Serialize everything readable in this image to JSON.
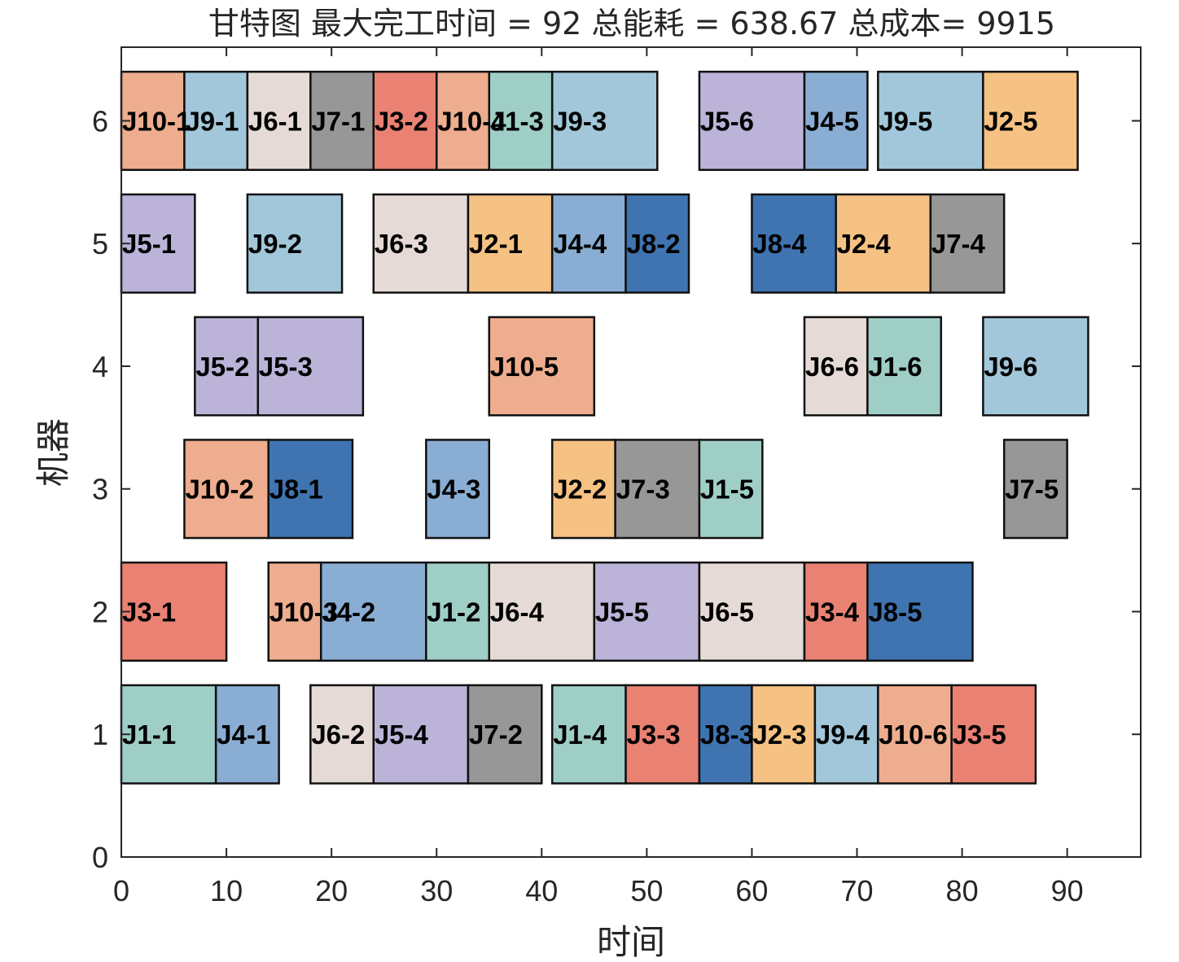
{
  "chart_data": {
    "type": "gantt",
    "title": "甘特图 最大完工时间 = 92 总能耗 = 638.67 总成本= 9915",
    "xlabel": "时间",
    "ylabel": "机器",
    "xlim": [
      0,
      97
    ],
    "ylim": [
      0,
      6.6
    ],
    "xticks": [
      "0",
      "10",
      "20",
      "30",
      "40",
      "50",
      "60",
      "70",
      "80",
      "90"
    ],
    "xtick_values": [
      0,
      10,
      20,
      30,
      40,
      50,
      60,
      70,
      80,
      90
    ],
    "yticks": [
      "0",
      "1",
      "2",
      "3",
      "4",
      "5",
      "6"
    ],
    "ytick_values": [
      0,
      1,
      2,
      3,
      4,
      5,
      6
    ],
    "grid": false,
    "job_colors": {
      "J1": "#9fcec7",
      "J2": "#f5c283",
      "J3": "#ea8273",
      "J4": "#8aadd3",
      "J5": "#bcb3d9",
      "J6": "#e5dad5",
      "J7": "#979797",
      "J8": "#3f74b1",
      "J9": "#a2c7da",
      "J10": "#edad8e"
    },
    "tasks": [
      {
        "machine": 1,
        "job": "J1",
        "label": "J1-1",
        "start": 0,
        "end": 9
      },
      {
        "machine": 1,
        "job": "J4",
        "label": "J4-1",
        "start": 9,
        "end": 15
      },
      {
        "machine": 1,
        "job": "J6",
        "label": "J6-2",
        "start": 18,
        "end": 24
      },
      {
        "machine": 1,
        "job": "J5",
        "label": "J5-4",
        "start": 24,
        "end": 33
      },
      {
        "machine": 1,
        "job": "J7",
        "label": "J7-2",
        "start": 33,
        "end": 40
      },
      {
        "machine": 1,
        "job": "J1",
        "label": "J1-4",
        "start": 41,
        "end": 48
      },
      {
        "machine": 1,
        "job": "J3",
        "label": "J3-3",
        "start": 48,
        "end": 55
      },
      {
        "machine": 1,
        "job": "J8",
        "label": "J8-3",
        "start": 55,
        "end": 60
      },
      {
        "machine": 1,
        "job": "J2",
        "label": "J2-3",
        "start": 60,
        "end": 66
      },
      {
        "machine": 1,
        "job": "J9",
        "label": "J9-4",
        "start": 66,
        "end": 72
      },
      {
        "machine": 1,
        "job": "J10",
        "label": "J10-6",
        "start": 72,
        "end": 79
      },
      {
        "machine": 1,
        "job": "J3",
        "label": "J3-5",
        "start": 79,
        "end": 87
      },
      {
        "machine": 2,
        "job": "J3",
        "label": "J3-1",
        "start": 0,
        "end": 10
      },
      {
        "machine": 2,
        "job": "J10",
        "label": "J10-3",
        "start": 14,
        "end": 19
      },
      {
        "machine": 2,
        "job": "J4",
        "label": "J4-2",
        "start": 19,
        "end": 29
      },
      {
        "machine": 2,
        "job": "J1",
        "label": "J1-2",
        "start": 29,
        "end": 35
      },
      {
        "machine": 2,
        "job": "J6",
        "label": "J6-4",
        "start": 35,
        "end": 45
      },
      {
        "machine": 2,
        "job": "J5",
        "label": "J5-5",
        "start": 45,
        "end": 55
      },
      {
        "machine": 2,
        "job": "J6",
        "label": "J6-5",
        "start": 55,
        "end": 65
      },
      {
        "machine": 2,
        "job": "J3",
        "label": "J3-4",
        "start": 65,
        "end": 71
      },
      {
        "machine": 2,
        "job": "J8",
        "label": "J8-5",
        "start": 71,
        "end": 81
      },
      {
        "machine": 3,
        "job": "J10",
        "label": "J10-2",
        "start": 6,
        "end": 14
      },
      {
        "machine": 3,
        "job": "J8",
        "label": "J8-1",
        "start": 14,
        "end": 22
      },
      {
        "machine": 3,
        "job": "J4",
        "label": "J4-3",
        "start": 29,
        "end": 35
      },
      {
        "machine": 3,
        "job": "J2",
        "label": "J2-2",
        "start": 41,
        "end": 47
      },
      {
        "machine": 3,
        "job": "J7",
        "label": "J7-3",
        "start": 47,
        "end": 55
      },
      {
        "machine": 3,
        "job": "J1",
        "label": "J1-5",
        "start": 55,
        "end": 61
      },
      {
        "machine": 3,
        "job": "J7",
        "label": "J7-5",
        "start": 84,
        "end": 90
      },
      {
        "machine": 4,
        "job": "J5",
        "label": "J5-2",
        "start": 7,
        "end": 13
      },
      {
        "machine": 4,
        "job": "J5",
        "label": "J5-3",
        "start": 13,
        "end": 23
      },
      {
        "machine": 4,
        "job": "J10",
        "label": "J10-5",
        "start": 35,
        "end": 45
      },
      {
        "machine": 4,
        "job": "J6",
        "label": "J6-6",
        "start": 65,
        "end": 71
      },
      {
        "machine": 4,
        "job": "J1",
        "label": "J1-6",
        "start": 71,
        "end": 78
      },
      {
        "machine": 4,
        "job": "J9",
        "label": "J9-6",
        "start": 82,
        "end": 92
      },
      {
        "machine": 5,
        "job": "J5",
        "label": "J5-1",
        "start": 0,
        "end": 7
      },
      {
        "machine": 5,
        "job": "J9",
        "label": "J9-2",
        "start": 12,
        "end": 21
      },
      {
        "machine": 5,
        "job": "J6",
        "label": "J6-3",
        "start": 24,
        "end": 33
      },
      {
        "machine": 5,
        "job": "J2",
        "label": "J2-1",
        "start": 33,
        "end": 41
      },
      {
        "machine": 5,
        "job": "J4",
        "label": "J4-4",
        "start": 41,
        "end": 48
      },
      {
        "machine": 5,
        "job": "J8",
        "label": "J8-2",
        "start": 48,
        "end": 54
      },
      {
        "machine": 5,
        "job": "J8",
        "label": "J8-4",
        "start": 60,
        "end": 68
      },
      {
        "machine": 5,
        "job": "J2",
        "label": "J2-4",
        "start": 68,
        "end": 77
      },
      {
        "machine": 5,
        "job": "J7",
        "label": "J7-4",
        "start": 77,
        "end": 84
      },
      {
        "machine": 6,
        "job": "J10",
        "label": "J10-1",
        "start": 0,
        "end": 6
      },
      {
        "machine": 6,
        "job": "J9",
        "label": "J9-1",
        "start": 6,
        "end": 12
      },
      {
        "machine": 6,
        "job": "J6",
        "label": "J6-1",
        "start": 12,
        "end": 18
      },
      {
        "machine": 6,
        "job": "J7",
        "label": "J7-1",
        "start": 18,
        "end": 24
      },
      {
        "machine": 6,
        "job": "J3",
        "label": "J3-2",
        "start": 24,
        "end": 30
      },
      {
        "machine": 6,
        "job": "J10",
        "label": "J10-4",
        "start": 30,
        "end": 35
      },
      {
        "machine": 6,
        "job": "J1",
        "label": "J1-3",
        "start": 35,
        "end": 41
      },
      {
        "machine": 6,
        "job": "J9",
        "label": "J9-3",
        "start": 41,
        "end": 51
      },
      {
        "machine": 6,
        "job": "J5",
        "label": "J5-6",
        "start": 55,
        "end": 65
      },
      {
        "machine": 6,
        "job": "J4",
        "label": "J4-5",
        "start": 65,
        "end": 71
      },
      {
        "machine": 6,
        "job": "J9",
        "label": "J9-5",
        "start": 72,
        "end": 82
      },
      {
        "machine": 6,
        "job": "J2",
        "label": "J2-5",
        "start": 82,
        "end": 91
      }
    ]
  }
}
